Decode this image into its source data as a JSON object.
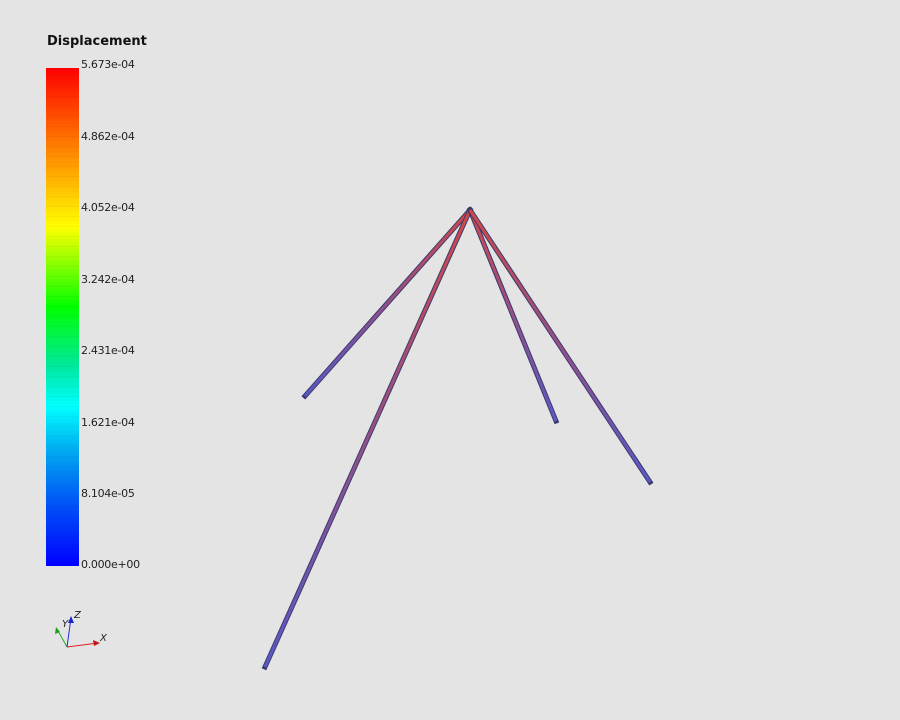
{
  "legend": {
    "title": "Displacement",
    "ticks": [
      "5.673e-04",
      "4.862e-04",
      "4.052e-04",
      "3.242e-04",
      "2.431e-04",
      "1.621e-04",
      "8.104e-05",
      "0.000e+00"
    ]
  },
  "axes": {
    "x": "X",
    "y": "Y",
    "z": "Z"
  },
  "colors": {
    "background": "#e5e4e4",
    "member_top": "#d04848",
    "member_bottom": "#5a5ac8"
  }
}
